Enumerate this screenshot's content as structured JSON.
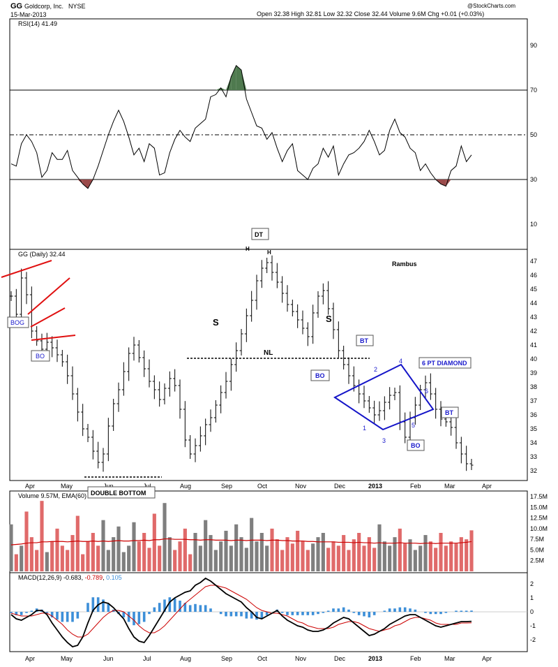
{
  "header": {
    "symbol": "GG",
    "company": "Goldcorp, Inc.",
    "exchange": "NYSE",
    "date": "15-Mar-2013",
    "ohlc": "Open 32.38  High 32.81  Low 32.32  Close 32.44  Volume 9.6M  Chg +0.01 (+0.03%)",
    "copyright": "@StockCharts.com"
  },
  "colors": {
    "price_bar": "#000000",
    "vol_up": "#7f7f7f",
    "vol_down": "#e06a6a",
    "ma_line": "#cc0000",
    "hist": "#3d8fd8",
    "rsi_overbought_fill": "#4f7a4f",
    "rsi_oversold_fill": "#9a4a4a",
    "diamond": "#1414c8",
    "trend_lines": "#e01010",
    "annotation_text": "#1a1acc"
  },
  "chart_data": [
    {
      "panel": "rsi",
      "type": "line",
      "label": "RSI(14) 41.49",
      "yticks": [
        10,
        30,
        50,
        70,
        90
      ],
      "ylim": [
        0,
        100
      ],
      "reference_lines": [
        30,
        50,
        70
      ],
      "values": [
        37,
        36,
        46,
        50,
        47,
        42,
        31,
        34,
        42,
        39,
        39,
        43,
        34,
        31,
        28,
        26,
        30,
        36,
        43,
        50,
        56,
        61,
        56,
        49,
        41,
        44,
        38,
        46,
        44,
        32,
        33,
        42,
        48,
        52,
        49,
        47,
        53,
        55,
        57,
        67,
        68,
        71,
        67,
        76,
        81,
        79,
        66,
        60,
        54,
        53,
        48,
        51,
        44,
        38,
        43,
        46,
        34,
        32,
        30,
        35,
        37,
        44,
        40,
        45,
        32,
        37,
        41,
        42,
        44,
        47,
        52,
        47,
        41,
        43,
        52,
        57,
        51,
        49,
        44,
        42,
        34,
        37,
        33,
        30,
        28,
        27,
        34,
        36,
        45,
        38,
        41
      ],
      "xlabels": [
        "Apr",
        "May",
        "Jun",
        "Jul",
        "Aug",
        "Sep",
        "Oct",
        "Nov",
        "Dec",
        "2013",
        "Feb",
        "Mar",
        "Apr"
      ]
    },
    {
      "panel": "price",
      "type": "ohlc",
      "label": "GG (Daily) 32.44",
      "yticks": [
        32,
        33,
        34,
        35,
        36,
        37,
        38,
        39,
        40,
        41,
        42,
        43,
        44,
        45,
        46,
        47
      ],
      "ylim": [
        31.4,
        47.7
      ],
      "closes": [
        44.5,
        43.2,
        45.8,
        44.6,
        42.0,
        41.3,
        40.7,
        41.2,
        40.8,
        40.3,
        39.8,
        38.8,
        37.5,
        36.2,
        35.0,
        34.4,
        33.4,
        32.6,
        33.2,
        35.2,
        36.8,
        37.8,
        39.1,
        40.4,
        41.0,
        40.1,
        39.3,
        38.4,
        37.8,
        37.1,
        37.9,
        38.6,
        38.1,
        36.4,
        34.2,
        33.2,
        33.8,
        34.5,
        35.3,
        35.8,
        36.7,
        37.6,
        38.4,
        39.6,
        40.6,
        41.8,
        43.1,
        44.2,
        45.6,
        46.5,
        46.9,
        46.2,
        45.5,
        44.7,
        43.9,
        43.4,
        42.8,
        42.2,
        41.6,
        43.3,
        44.5,
        44.9,
        43.6,
        42.1,
        40.6,
        39.6,
        38.8,
        38.1,
        37.5,
        37.0,
        36.5,
        36.0,
        36.3,
        36.9,
        37.4,
        37.6,
        35.5,
        34.4,
        35.8,
        36.7,
        37.8,
        38.3,
        37.5,
        36.4,
        35.7,
        35.5,
        35.1,
        34.0,
        33.2,
        32.5,
        32.4
      ]
    },
    {
      "panel": "volume",
      "type": "bar",
      "label": "Volume 9.57M, EMA(60) 6.96M",
      "yticks": [
        "2.5M",
        "5.0M",
        "7.5M",
        "10.0M",
        "12.5M",
        "15.0M",
        "17.5M"
      ],
      "ylim": [
        0,
        18
      ],
      "values": [
        11.0,
        4.0,
        6.0,
        14.0,
        8.0,
        5.0,
        16.5,
        4.5,
        7.0,
        10.0,
        6.0,
        5.0,
        8.5,
        13.0,
        4.0,
        7.0,
        9.0,
        6.0,
        12.0,
        5.0,
        8.0,
        10.5,
        4.5,
        6.0,
        11.5,
        7.0,
        9.0,
        5.5,
        13.5,
        6.0,
        16.0,
        8.0,
        5.0,
        7.0,
        10.0,
        4.0,
        9.0,
        6.0,
        12.0,
        8.5,
        5.0,
        7.0,
        9.5,
        6.0,
        11.0,
        8.0,
        5.5,
        12.5,
        7.0,
        9.0,
        6.0,
        10.0,
        7.5,
        5.0,
        8.0,
        6.5,
        9.5,
        7.0,
        5.0,
        6.5,
        8.0,
        9.0,
        5.5,
        7.0,
        6.0,
        8.5,
        5.0,
        7.5,
        9.0,
        6.0,
        8.0,
        5.5,
        11.0,
        7.0,
        6.0,
        8.0,
        10.0,
        6.5,
        7.5,
        5.0,
        6.0,
        8.5,
        7.0,
        5.5,
        9.0,
        6.0,
        7.0,
        6.5,
        8.0,
        7.5,
        9.6
      ],
      "ema": [
        6.2,
        6.3,
        6.4,
        6.6,
        6.7,
        6.7,
        6.9,
        6.9,
        7.0,
        7.0,
        7.0,
        6.9,
        7.0,
        7.1,
        7.0,
        7.0,
        7.1,
        7.0,
        7.1,
        7.0,
        7.1,
        7.2,
        7.1,
        7.1,
        7.2,
        7.2,
        7.3,
        7.2,
        7.4,
        7.4,
        7.6,
        7.6,
        7.5,
        7.5,
        7.5,
        7.4,
        7.4,
        7.3,
        7.4,
        7.4,
        7.3,
        7.3,
        7.3,
        7.2,
        7.3,
        7.3,
        7.2,
        7.3,
        7.3,
        7.3,
        7.2,
        7.3,
        7.3,
        7.2,
        7.2,
        7.1,
        7.1,
        7.1,
        7.0,
        7.0,
        6.9,
        6.9,
        6.9,
        6.9,
        6.8,
        6.8,
        6.8,
        6.7,
        6.8,
        6.7,
        6.7,
        6.6,
        6.7,
        6.6,
        6.6,
        6.6,
        6.7,
        6.6,
        6.6,
        6.6,
        6.5,
        6.6,
        6.6,
        6.5,
        6.6,
        6.6,
        6.6,
        6.6,
        6.7,
        6.8,
        6.96
      ]
    },
    {
      "panel": "macd",
      "type": "line",
      "label": "MACD(12,26,9) -0.683, -0.789, 0.105",
      "label_parts": [
        "MACD(12,26,9)",
        "-0.683",
        ", ",
        "-0.789",
        ", ",
        "0.105"
      ],
      "yticks": [
        -2,
        -1,
        0,
        1,
        2
      ],
      "ylim": [
        -2.7,
        2.5
      ],
      "macd": [
        -0.2,
        -0.5,
        -0.6,
        -0.4,
        -0.2,
        0.1,
        0.1,
        -0.2,
        -0.8,
        -1.3,
        -1.8,
        -2.2,
        -2.5,
        -2.4,
        -1.8,
        -0.8,
        0.1,
        0.5,
        0.7,
        0.6,
        0.3,
        -0.1,
        -0.5,
        -1.2,
        -1.8,
        -2.1,
        -2.2,
        -1.7,
        -1.1,
        -0.5,
        0.1,
        0.7,
        1.0,
        1.2,
        1.4,
        1.5,
        1.9,
        2.1,
        2.4,
        2.2,
        1.9,
        1.6,
        1.3,
        1.1,
        0.9,
        0.7,
        0.3,
        0.0,
        -0.4,
        -0.5,
        -0.3,
        -0.1,
        0.1,
        -0.3,
        -0.6,
        -0.8,
        -1.0,
        -1.1,
        -1.3,
        -1.4,
        -1.4,
        -1.3,
        -1.1,
        -0.8,
        -0.6,
        -0.4,
        -0.5,
        -0.8,
        -1.1,
        -1.4,
        -1.7,
        -1.6,
        -1.4,
        -1.2,
        -0.9,
        -0.7,
        -0.5,
        -0.3,
        -0.2,
        -0.2,
        -0.4,
        -0.6,
        -0.8,
        -1.0,
        -1.1,
        -1.0,
        -0.9,
        -0.8,
        -0.7,
        -0.7,
        -0.68
      ],
      "signal": [
        -0.1,
        -0.2,
        -0.3,
        -0.3,
        -0.3,
        -0.2,
        -0.1,
        -0.1,
        -0.3,
        -0.6,
        -0.9,
        -1.3,
        -1.6,
        -1.8,
        -1.8,
        -1.6,
        -1.2,
        -0.8,
        -0.4,
        -0.1,
        0.1,
        0.1,
        0.0,
        -0.3,
        -0.6,
        -1.0,
        -1.3,
        -1.5,
        -1.5,
        -1.3,
        -1.0,
        -0.6,
        -0.2,
        0.2,
        0.6,
        0.9,
        1.2,
        1.5,
        1.8,
        1.9,
        1.9,
        1.8,
        1.7,
        1.5,
        1.3,
        1.1,
        0.9,
        0.6,
        0.3,
        0.1,
        0.0,
        -0.1,
        -0.1,
        -0.2,
        -0.3,
        -0.5,
        -0.7,
        -0.8,
        -1.0,
        -1.1,
        -1.2,
        -1.2,
        -1.2,
        -1.1,
        -0.9,
        -0.8,
        -0.7,
        -0.7,
        -0.8,
        -1.0,
        -1.2,
        -1.3,
        -1.4,
        -1.3,
        -1.2,
        -1.0,
        -0.9,
        -0.7,
        -0.5,
        -0.4,
        -0.4,
        -0.5,
        -0.6,
        -0.8,
        -0.9,
        -0.9,
        -0.9,
        -0.9,
        -0.8,
        -0.8,
        -0.79
      ]
    }
  ],
  "annotations": {
    "dt": "DT",
    "h1": "H",
    "h2": "H",
    "s1": "S",
    "s2": "S",
    "nl": "NL",
    "bog": "BOG",
    "bo1": "BO",
    "bo2": "BO",
    "bo3": "BO",
    "bt1": "BT",
    "bt2": "BT",
    "diamond": "6 PT DIAMOND",
    "double_bottom": "DOUBLE BOTTOM",
    "rambus": "Rambus",
    "d1": "1",
    "d2": "2",
    "d3": "3",
    "d4": "4",
    "d5": "5",
    "d6": "6"
  }
}
